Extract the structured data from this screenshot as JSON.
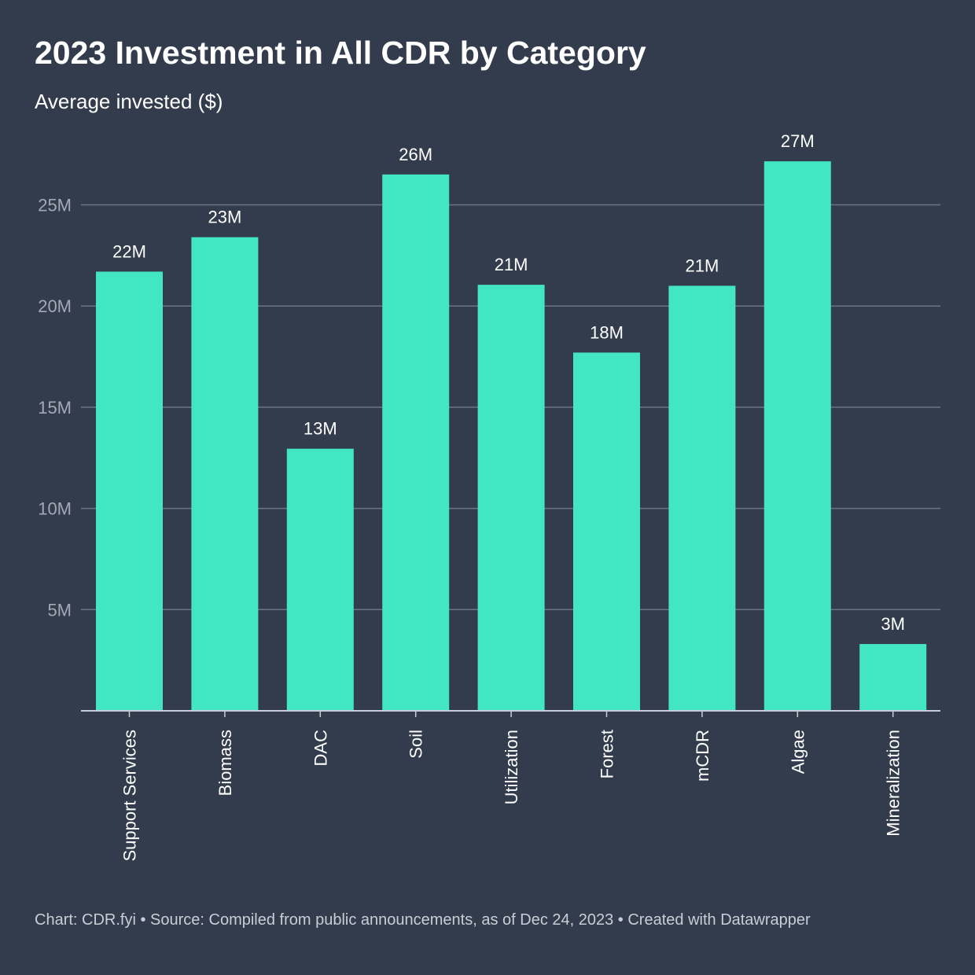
{
  "header": {
    "title": "2023 Investment in All CDR by Category",
    "subtitle": "Average invested ($)"
  },
  "footer": {
    "text": "Chart: CDR.fyi • Source: Compiled from public announcements, as of Dec 24, 2023 • Created with Datawrapper"
  },
  "colors": {
    "background": "#323c4c",
    "bar": "#43e6c3",
    "gridline": "#6b7482",
    "axis": "#c9ced6"
  },
  "chart_data": {
    "type": "bar",
    "title": "2023 Investment in All CDR by Category",
    "subtitle": "Average invested ($)",
    "xlabel": "",
    "ylabel": "Average invested ($)",
    "ylim": [
      0,
      27000000
    ],
    "grid": true,
    "categories": [
      "Support Services",
      "Biomass",
      "DAC",
      "Soil",
      "Utilization",
      "Forest",
      "mCDR",
      "Algae",
      "Mineralization"
    ],
    "values": [
      21700000,
      23400000,
      12950000,
      26500000,
      21050000,
      17700000,
      21000000,
      27150000,
      3300000
    ],
    "value_labels": [
      "22M",
      "23M",
      "13M",
      "26M",
      "21M",
      "18M",
      "21M",
      "27M",
      "3M"
    ],
    "y_ticks": [
      {
        "value": 5000000,
        "label": "5M"
      },
      {
        "value": 10000000,
        "label": "10M"
      },
      {
        "value": 15000000,
        "label": "15M"
      },
      {
        "value": 20000000,
        "label": "20M"
      },
      {
        "value": 25000000,
        "label": "25M"
      }
    ]
  }
}
